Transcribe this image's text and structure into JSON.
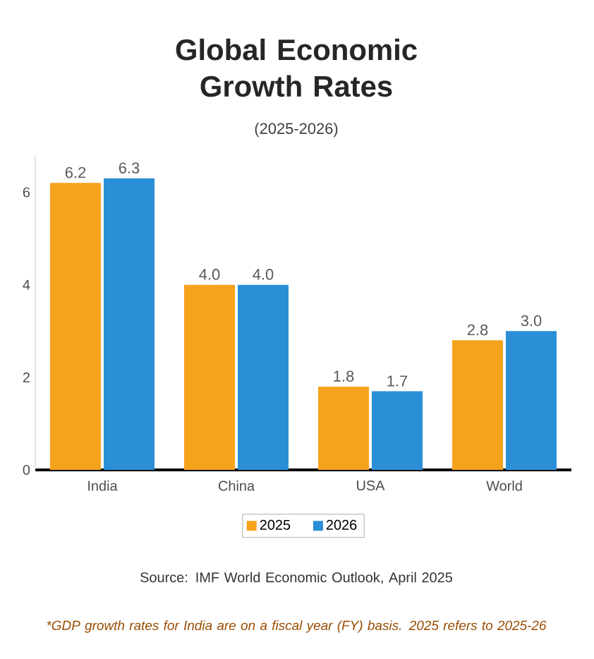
{
  "chart_data": {
    "type": "bar",
    "title": "Global Economic Growth Rates",
    "subtitle": "(2025-2026)",
    "categories": [
      "India",
      "China",
      "USA",
      "World"
    ],
    "series": [
      {
        "name": "2025",
        "color": "#f5a21c",
        "values": [
          6.2,
          4.0,
          1.8,
          2.8
        ],
        "value_labels": [
          "6.2",
          "4.0",
          "1.8",
          "2.8"
        ]
      },
      {
        "name": "2026",
        "color": "#2a8fd6",
        "values": [
          6.3,
          4.0,
          1.7,
          3.0
        ],
        "value_labels": [
          "6.3",
          "4.0",
          "1.7",
          "3.0"
        ]
      }
    ],
    "ylim": [
      0,
      6.8
    ],
    "yticks": [
      0,
      2,
      4,
      6
    ],
    "legend": "bottom",
    "annotations": [
      "Source: IMF World Economic Outlook, April 2025",
      "*GDP growth rates for India are on a fiscal year (FY) basis. 2025 refers to 2025-26"
    ]
  }
}
